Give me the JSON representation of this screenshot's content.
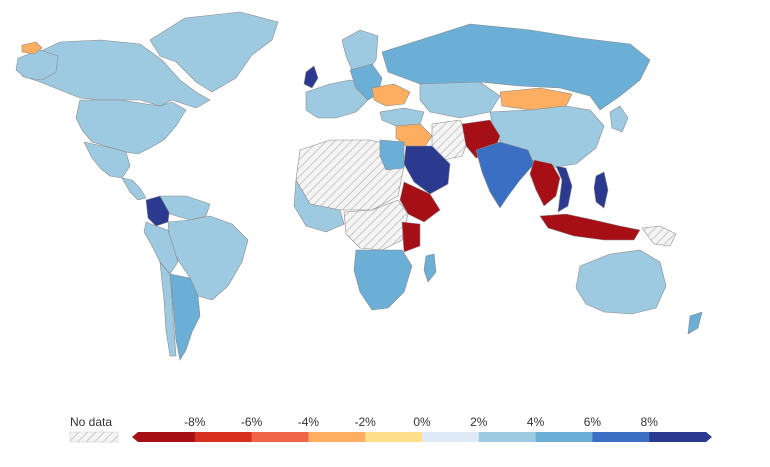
{
  "legend": {
    "no_data_label": "No data",
    "tick_labels": [
      "-8%",
      "-6%",
      "-4%",
      "-2%",
      "0%",
      "2%",
      "4%",
      "6%",
      "8%"
    ],
    "bin_colors": [
      "#a50f15",
      "#d7301f",
      "#ef6548",
      "#fdae61",
      "#fee08b",
      "#deebf7",
      "#9ecae1",
      "#6baed6",
      "#3a6fc4",
      "#2b3a8f"
    ],
    "no_data_pattern_color": "#cccccc"
  },
  "colors": {
    "background": "#ffffff",
    "border": "#8a8a8a",
    "no_data_fill": "#f2f2f2",
    "no_data_hatch": "#c8c8c8"
  },
  "regions": [
    {
      "name": "Greenland",
      "color_bin": 6
    },
    {
      "name": "Canada",
      "color_bin": 6
    },
    {
      "name": "United States",
      "color_bin": 6
    },
    {
      "name": "Mexico",
      "color_bin": 6
    },
    {
      "name": "Colombia",
      "color_bin": 9
    },
    {
      "name": "Brazil",
      "color_bin": 6
    },
    {
      "name": "Argentina",
      "color_bin": 7
    },
    {
      "name": "Russia",
      "color_bin": 3
    },
    {
      "name": "Ukraine",
      "color_bin": 0
    },
    {
      "name": "Saudi Arabia",
      "color_bin": 9
    },
    {
      "name": "India",
      "color_bin": 8
    },
    {
      "name": "China",
      "color_bin": 6
    },
    {
      "name": "Australia",
      "color_bin": 6
    },
    {
      "name": "Vietnam",
      "color_bin": 9
    },
    {
      "name": "Iceland",
      "color_bin": 3
    },
    {
      "name": "Sahara region",
      "color_bin": -1
    }
  ]
}
